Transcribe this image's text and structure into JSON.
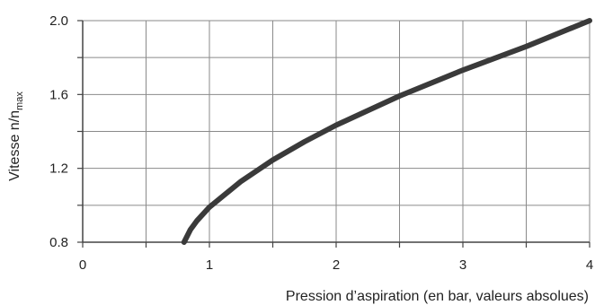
{
  "chart_data": {
    "type": "line",
    "title": "",
    "xlabel": "Pression d’aspiration (en bar, valeurs absolues)",
    "ylabel": {
      "main": "Vitesse n/n",
      "subscript": "max"
    },
    "xlim": [
      0,
      4
    ],
    "ylim": [
      0.8,
      2.0
    ],
    "x_ticks": [
      "0",
      "1",
      "2",
      "3",
      "4"
    ],
    "y_ticks": [
      "0.8",
      "1.2",
      "1.6",
      "2.0"
    ],
    "grid": true,
    "legend": "none",
    "series": [
      {
        "color": "#3a3a3a",
        "x": [
          0.8,
          0.85,
          0.9,
          1.0,
          1.25,
          1.5,
          1.75,
          2.0,
          2.5,
          3.0,
          3.5,
          4.0
        ],
        "y": [
          0.8,
          0.868,
          0.915,
          0.99,
          1.13,
          1.245,
          1.344,
          1.434,
          1.592,
          1.732,
          1.86,
          2.0
        ]
      }
    ]
  }
}
